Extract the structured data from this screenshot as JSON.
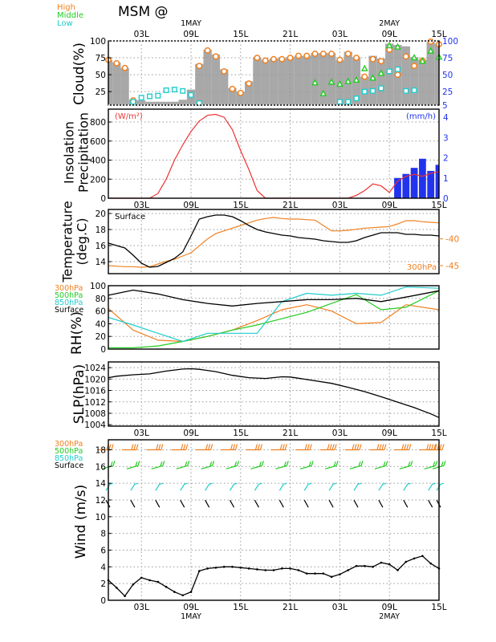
{
  "header": {
    "title": "MSM  @",
    "cloud_legend": [
      {
        "label": "High",
        "color": "#f08020"
      },
      {
        "label": "Middle",
        "color": "#22cc22"
      },
      {
        "label": "Low",
        "color": "#22cccc"
      }
    ]
  },
  "time_axis": {
    "ticks": [
      {
        "label": "03L",
        "h": 3
      },
      {
        "label": "09L",
        "h": 9
      },
      {
        "label": "15L",
        "h": 15
      },
      {
        "label": "21L",
        "h": 21
      },
      {
        "label": "03L",
        "h": 27
      },
      {
        "label": "09L",
        "h": 33
      },
      {
        "label": "15L",
        "h": 39
      }
    ],
    "dates": [
      {
        "label": "1MAY",
        "h": 9
      },
      {
        "label": "2MAY",
        "h": 33
      }
    ],
    "range": [
      -1,
      39
    ]
  },
  "colors": {
    "grey": "#a8a8a8",
    "orange": "#f08020",
    "green": "#22cc22",
    "cyan": "#22cccc",
    "red": "#ee3333",
    "blue": "#2233ee",
    "black": "#000000"
  },
  "chart_data": [
    {
      "type": "bar",
      "id": "cloud",
      "ylabel": "Cloud(%)",
      "yticks": [
        25,
        50,
        75,
        100
      ],
      "ylim": [
        5,
        100
      ],
      "right_ticks": [
        5,
        25,
        50,
        75,
        100
      ],
      "x": [
        -1,
        0,
        1,
        2,
        3,
        4,
        5,
        6,
        7,
        8,
        9,
        10,
        11,
        12,
        13,
        14,
        15,
        16,
        17,
        18,
        19,
        20,
        21,
        22,
        23,
        24,
        25,
        26,
        27,
        28,
        29,
        30,
        31,
        32,
        33,
        34,
        35,
        36,
        37,
        38,
        39
      ],
      "series": [
        {
          "name": "Total",
          "values": [
            72,
            68,
            60,
            13,
            12,
            10,
            10,
            10,
            10,
            13,
            28,
            66,
            87,
            80,
            58,
            30,
            25,
            40,
            75,
            72,
            74,
            74,
            76,
            78,
            78,
            82,
            82,
            82,
            72,
            84,
            76,
            47,
            78,
            74,
            96,
            94,
            92,
            76,
            72,
            98,
            96
          ]
        },
        {
          "name": "High",
          "values": [
            72,
            67,
            60,
            12,
            null,
            null,
            null,
            null,
            null,
            null,
            null,
            63,
            86,
            77,
            55,
            29,
            23,
            37,
            75,
            71,
            73,
            73,
            75,
            78,
            78,
            81,
            81,
            81,
            72,
            81,
            75,
            47,
            73,
            70,
            87,
            50,
            77,
            63,
            71,
            99,
            95
          ]
        },
        {
          "name": "Middle",
          "values": [
            null,
            null,
            null,
            null,
            null,
            null,
            null,
            null,
            null,
            null,
            null,
            null,
            null,
            null,
            null,
            null,
            null,
            null,
            null,
            null,
            null,
            null,
            null,
            null,
            null,
            38,
            22,
            39,
            36,
            40,
            42,
            59,
            45,
            52,
            93,
            91,
            null,
            75,
            70,
            85,
            76
          ]
        },
        {
          "name": "Low",
          "values": [
            null,
            null,
            null,
            10,
            16,
            18,
            19,
            27,
            28,
            26,
            20,
            8,
            null,
            null,
            null,
            null,
            null,
            null,
            null,
            null,
            null,
            null,
            null,
            null,
            null,
            null,
            null,
            null,
            10,
            10,
            15,
            25,
            26,
            30,
            55,
            58,
            26,
            27,
            null,
            null,
            null
          ]
        }
      ]
    },
    {
      "type": "bar",
      "id": "insolation",
      "ylabel_lines": [
        "Insolation",
        "Precipitation"
      ],
      "left_unit": "(W/m²)",
      "right_unit": "(mm/h)",
      "yticks": [
        0,
        200,
        400,
        600,
        800
      ],
      "ylim": [
        0,
        935
      ],
      "right_ticks": [
        0,
        1,
        2,
        3,
        4
      ],
      "right_ylim": [
        0,
        4.4
      ],
      "insolation_x": [
        -1,
        4,
        5,
        6,
        7,
        8,
        9,
        10,
        11,
        12,
        13,
        14,
        15,
        16,
        17,
        18,
        19,
        20,
        21,
        22,
        23,
        24,
        25,
        26,
        27,
        28,
        29,
        30,
        31,
        32,
        33,
        34,
        35,
        36,
        37,
        38,
        39
      ],
      "insolation": [
        0,
        0,
        50,
        200,
        400,
        560,
        700,
        810,
        870,
        880,
        850,
        720,
        500,
        300,
        80,
        0,
        0,
        0,
        0,
        0,
        0,
        0,
        0,
        0,
        0,
        0,
        30,
        80,
        150,
        130,
        60,
        180,
        230,
        250,
        230,
        260,
        280
      ],
      "precip_x": [
        34,
        35,
        36,
        37,
        38,
        39
      ],
      "precip": [
        1.0,
        1.2,
        1.5,
        1.95,
        1.35,
        1.65
      ]
    },
    {
      "type": "line",
      "id": "temperature",
      "ylabel_lines": [
        "Temperature",
        "(deg.C)"
      ],
      "series_label_surface": "Surface",
      "series_label_upper": "300hPa",
      "yticks": [
        14,
        16,
        18,
        20
      ],
      "ylim": [
        12.5,
        20.5
      ],
      "right_ticks": [
        -40,
        -45
      ],
      "right_ylim": [
        -46.5,
        -34.5
      ],
      "x": [
        -1,
        0,
        1,
        2,
        3,
        4,
        5,
        6,
        7,
        8,
        9,
        10,
        11,
        12,
        13,
        14,
        15,
        16,
        17,
        18,
        19,
        20,
        21,
        22,
        23,
        24,
        25,
        26,
        27,
        28,
        29,
        30,
        31,
        32,
        33,
        34,
        35,
        36,
        37,
        38,
        39
      ],
      "surface": [
        16.3,
        16.0,
        15.7,
        14.8,
        13.8,
        13.3,
        13.4,
        13.9,
        14.4,
        15.2,
        17.2,
        19.3,
        19.6,
        19.8,
        19.8,
        19.6,
        19.1,
        18.5,
        18.0,
        17.7,
        17.5,
        17.3,
        17.2,
        17.0,
        16.9,
        16.8,
        16.6,
        16.5,
        16.4,
        16.4,
        16.6,
        17.0,
        17.3,
        17.6,
        17.6,
        17.6,
        17.4,
        17.4,
        17.3,
        17.3,
        17.2
      ],
      "upper": [
        -45.0,
        -45.1,
        -45.2,
        -45.2,
        -45.3,
        -45.2,
        -44.7,
        -44.2,
        -43.8,
        -43.2,
        -42.6,
        -41.3,
        -40.0,
        -39.0,
        -38.5,
        -38.0,
        -37.5,
        -37.0,
        -36.5,
        -36.2,
        -36.0,
        -36.2,
        -36.3,
        -36.3,
        -36.4,
        -36.5,
        -37.5,
        -38.5,
        -38.5,
        -38.4,
        -38.2,
        -38.0,
        -37.9,
        -37.8,
        -37.7,
        -37.2,
        -36.6,
        -36.6,
        -36.8,
        -36.9,
        -37.0
      ]
    },
    {
      "type": "line",
      "id": "rh",
      "ylabel": "RH(%)",
      "legend": [
        {
          "label": "300hPa",
          "color": "#f08020"
        },
        {
          "label": "500hPa",
          "color": "#22cc22"
        },
        {
          "label": "850hPa",
          "color": "#22cccc"
        },
        {
          "label": "Surface",
          "color": "#000000"
        }
      ],
      "yticks": [
        0,
        20,
        40,
        60,
        80,
        100
      ],
      "ylim": [
        0,
        100
      ],
      "x": [
        -1,
        2,
        5,
        8,
        11,
        14,
        17,
        20,
        23,
        26,
        29,
        32,
        35,
        39
      ],
      "s300": [
        64,
        30,
        14,
        12,
        20,
        30,
        45,
        62,
        70,
        60,
        40,
        42,
        70,
        62
      ],
      "s500": [
        2,
        2,
        5,
        12,
        20,
        30,
        38,
        48,
        58,
        72,
        86,
        62,
        66,
        92
      ],
      "s850": [
        50,
        38,
        25,
        12,
        25,
        25,
        25,
        75,
        88,
        85,
        88,
        85,
        98,
        96
      ],
      "surface": [
        85,
        93,
        87,
        78,
        72,
        68,
        72,
        75,
        78,
        78,
        80,
        75,
        82,
        92
      ]
    },
    {
      "type": "line",
      "id": "slp",
      "ylabel": "SLP(hPa)",
      "yticks": [
        1004,
        1008,
        1012,
        1016,
        1020,
        1024
      ],
      "ylim": [
        1003.5,
        1026
      ],
      "x": [
        -1,
        0,
        2,
        4,
        6,
        8,
        9,
        10,
        12,
        14,
        16,
        18,
        20,
        21,
        22,
        24,
        26,
        28,
        30,
        32,
        34,
        36,
        38,
        39
      ],
      "values": [
        1020.5,
        1021.0,
        1021.5,
        1021.8,
        1022.8,
        1023.5,
        1023.6,
        1023.4,
        1022.6,
        1021.3,
        1020.5,
        1020.2,
        1020.8,
        1020.7,
        1020.3,
        1019.4,
        1018.5,
        1017.1,
        1015.6,
        1013.8,
        1011.9,
        1010.0,
        1007.8,
        1006.5
      ]
    },
    {
      "type": "line",
      "id": "wind",
      "ylabel": "Wind (m/s)",
      "legend": [
        {
          "label": "300hPa",
          "color": "#f08020"
        },
        {
          "label": "500hPa",
          "color": "#22cc22"
        },
        {
          "label": "850hPa",
          "color": "#22cccc"
        },
        {
          "label": "Surface",
          "color": "#000000"
        }
      ],
      "yticks": [
        0,
        2,
        4,
        6,
        8,
        10,
        12,
        14,
        16,
        18
      ],
      "ylim": [
        0,
        19.2
      ],
      "barb_levels": [
        {
          "name": "300hPa",
          "y": 18,
          "color": "#f08020"
        },
        {
          "name": "500hPa",
          "y": 16,
          "color": "#22cc22"
        },
        {
          "name": "850hPa",
          "y": 13.6,
          "color": "#22cccc"
        },
        {
          "name": "Surface",
          "y": 11.5,
          "color": "#000000"
        }
      ],
      "barb_x": [
        -1,
        2,
        5,
        8,
        11,
        14,
        17,
        20,
        23,
        26,
        29,
        32,
        35,
        38,
        39
      ],
      "x": [
        -1,
        0,
        1,
        2,
        3,
        4,
        5,
        6,
        7,
        8,
        9,
        10,
        11,
        12,
        13,
        14,
        15,
        16,
        17,
        18,
        19,
        20,
        21,
        22,
        23,
        24,
        25,
        26,
        27,
        28,
        29,
        30,
        31,
        32,
        33,
        34,
        35,
        36,
        37,
        38,
        39
      ],
      "values": [
        2.4,
        1.5,
        0.5,
        1.9,
        2.7,
        2.4,
        2.2,
        1.6,
        1.0,
        0.6,
        1.0,
        3.5,
        3.8,
        3.9,
        4.0,
        4.0,
        3.9,
        3.8,
        3.7,
        3.6,
        3.6,
        3.8,
        3.8,
        3.6,
        3.2,
        3.2,
        3.2,
        2.8,
        3.1,
        3.6,
        4.1,
        4.1,
        4.0,
        4.5,
        4.3,
        3.6,
        4.6,
        5.0,
        5.3,
        4.4,
        3.8
      ]
    }
  ]
}
